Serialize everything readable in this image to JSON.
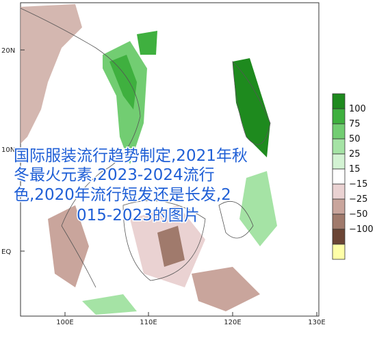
{
  "map": {
    "lat_labels": [
      "20N",
      "10N",
      "EQ"
    ],
    "lon_labels": [
      "100E",
      "110E",
      "120E",
      "130E"
    ],
    "legend": {
      "labels": [
        "100",
        "75",
        "50",
        "25",
        "15",
        "−15",
        "−25",
        "−50",
        "−100"
      ],
      "colors": [
        "#1e8a1e",
        "#3fb03f",
        "#72cd72",
        "#a5e3a5",
        "#d3f3d3",
        "#ffffff",
        "#ead2d2",
        "#c9a59c",
        "#a07a6c",
        "#6b4535",
        "#ffffa8"
      ]
    }
  },
  "overlay": {
    "lines": [
      "国际服装流行趋势制定,2021年秋",
      "冬最火元素,2023-2024流行",
      "色,2020年流行短发还是长发,2",
      "015-2023的图片"
    ]
  }
}
